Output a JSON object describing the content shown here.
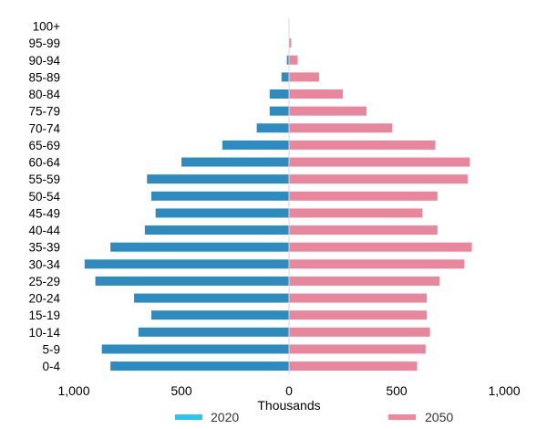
{
  "chart_data": {
    "type": "bar",
    "orientation": "horizontal-population-pyramid",
    "xlabel": "Thousands",
    "xlim": [
      -1000,
      1000
    ],
    "xticks": [
      {
        "value": -1000,
        "label": "1,000"
      },
      {
        "value": -500,
        "label": "500"
      },
      {
        "value": 0,
        "label": "0"
      },
      {
        "value": 500,
        "label": "500"
      },
      {
        "value": 1000,
        "label": "1,000"
      }
    ],
    "categories": [
      "100+",
      "95-99",
      "90-94",
      "85-89",
      "80-84",
      "75-79",
      "70-74",
      "65-69",
      "60-64",
      "55-59",
      "50-54",
      "45-49",
      "40-44",
      "35-39",
      "30-34",
      "25-29",
      "20-24",
      "15-19",
      "10-14",
      "5-9",
      "0-4"
    ],
    "series": [
      {
        "name": "2020",
        "side": "left",
        "color": "#2e8bc0",
        "values": [
          1,
          2,
          10,
          35,
          90,
          90,
          150,
          310,
          500,
          660,
          640,
          620,
          670,
          830,
          950,
          900,
          720,
          640,
          700,
          870,
          830
        ]
      },
      {
        "name": "2050",
        "side": "right",
        "color": "#e8879c",
        "values": [
          2,
          10,
          40,
          140,
          250,
          360,
          480,
          680,
          840,
          830,
          690,
          620,
          690,
          850,
          815,
          700,
          640,
          640,
          655,
          635,
          595
        ]
      }
    ],
    "legend": {
      "position": "bottom",
      "items": [
        {
          "label": "2020",
          "color": "#2ec4f0"
        },
        {
          "label": "2050",
          "color": "#f2879c"
        }
      ]
    },
    "grid": false
  }
}
